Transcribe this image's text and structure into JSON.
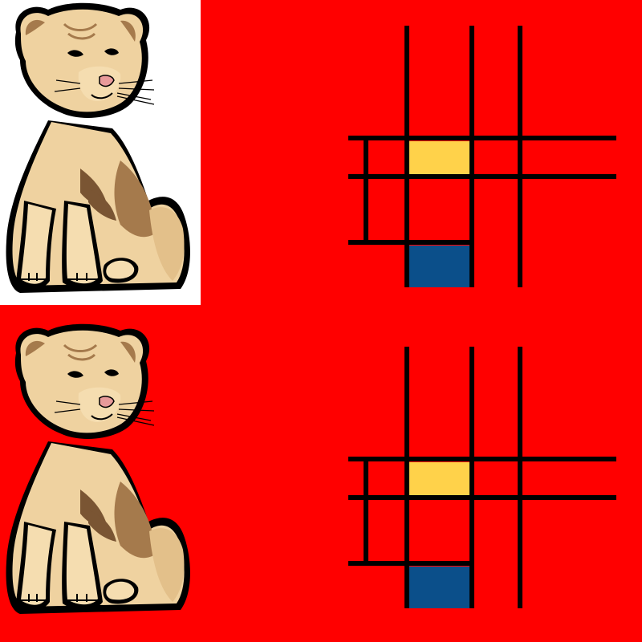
{
  "colors": {
    "background": "#ff0000",
    "panel_white": "#ffffff",
    "grid_line": "#000000",
    "yellow_block": "#ffd24a",
    "blue_block": "#0b4f8a",
    "fur_light": "#f5ddb0",
    "fur_mid": "#e3c08a",
    "fur_dark": "#a57a4c",
    "outline": "#000000",
    "nose": "#e89a9a"
  },
  "panels": [
    {
      "name": "lion-cub-on-white",
      "icon": "lion-cub-icon",
      "background": "white"
    },
    {
      "name": "mondrian-grid-top",
      "icon": "mondrian-grid-icon",
      "background": "red"
    },
    {
      "name": "lion-cub-on-red",
      "icon": "lion-cub-icon",
      "background": "red"
    },
    {
      "name": "mondrian-grid-bottom",
      "icon": "mondrian-grid-icon",
      "background": "red"
    }
  ]
}
